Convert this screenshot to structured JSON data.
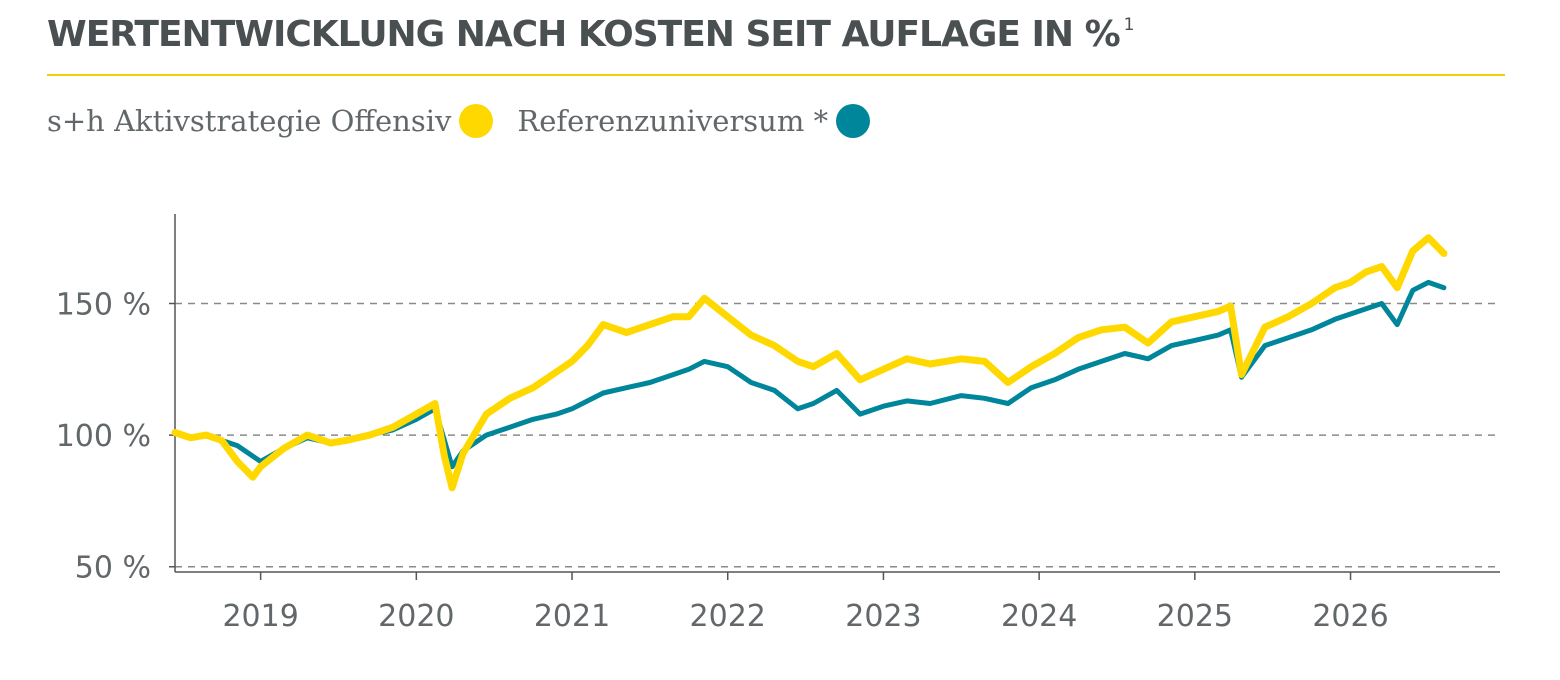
{
  "header": {
    "title": "WERTENTWICKLUNG NACH KOSTEN SEIT AUFLAGE IN %",
    "footnote": "1"
  },
  "legend": [
    {
      "label": "s+h Aktivstrategie Offensiv",
      "color": "#ffd800"
    },
    {
      "label": "Referenzuniversum *",
      "color": "#00869a"
    }
  ],
  "chart_data": {
    "type": "line",
    "title": "WERTENTWICKLUNG NACH KOSTEN SEIT AUFLAGE IN %",
    "xlabel": "",
    "ylabel": "",
    "xlim": [
      2018.45,
      2026.96
    ],
    "ylim": [
      48,
      184
    ],
    "y_ticks": [
      50,
      100,
      150
    ],
    "y_tick_labels": [
      "50 %",
      "100 %",
      "150 %"
    ],
    "x_ticks": [
      2019,
      2020,
      2021,
      2022,
      2023,
      2024,
      2025,
      2026
    ],
    "x_tick_labels": [
      "2019",
      "2020",
      "2021",
      "2022",
      "2023",
      "2024",
      "2025",
      "2026"
    ],
    "grid": "horizontal dashed at y ticks",
    "legend_position": "top-left",
    "series": [
      {
        "name": "s+h Aktivstrategie Offensiv",
        "color": "#ffd800",
        "x": [
          2018.45,
          2018.55,
          2018.65,
          2018.75,
          2018.85,
          2018.95,
          2019.0,
          2019.15,
          2019.3,
          2019.45,
          2019.55,
          2019.7,
          2019.85,
          2020.0,
          2020.12,
          2020.18,
          2020.23,
          2020.3,
          2020.45,
          2020.6,
          2020.75,
          2020.9,
          2021.0,
          2021.1,
          2021.2,
          2021.35,
          2021.5,
          2021.65,
          2021.75,
          2021.85,
          2022.0,
          2022.15,
          2022.3,
          2022.45,
          2022.55,
          2022.7,
          2022.85,
          2023.0,
          2023.15,
          2023.3,
          2023.5,
          2023.65,
          2023.8,
          2023.95,
          2024.1,
          2024.25,
          2024.4,
          2024.55,
          2024.7,
          2024.85,
          2025.0,
          2025.15,
          2025.23,
          2025.3,
          2025.45,
          2025.6,
          2025.75,
          2025.9,
          2026.0,
          2026.1,
          2026.2,
          2026.3,
          2026.4,
          2026.5,
          2026.6
        ],
        "values": [
          101,
          99,
          100,
          98,
          90,
          84,
          88,
          95,
          100,
          97,
          98,
          100,
          103,
          108,
          112,
          92,
          80,
          93,
          108,
          114,
          118,
          124,
          128,
          134,
          142,
          139,
          142,
          145,
          145,
          152,
          145,
          138,
          134,
          128,
          126,
          131,
          121,
          125,
          129,
          127,
          129,
          128,
          120,
          126,
          131,
          137,
          140,
          141,
          135,
          143,
          145,
          147,
          149,
          123,
          141,
          145,
          150,
          156,
          158,
          162,
          164,
          156,
          170,
          175,
          169
        ]
      },
      {
        "name": "Referenzuniversum *",
        "color": "#00869a",
        "x": [
          2018.45,
          2018.55,
          2018.65,
          2018.75,
          2018.85,
          2018.95,
          2019.0,
          2019.15,
          2019.3,
          2019.45,
          2019.55,
          2019.7,
          2019.85,
          2020.0,
          2020.12,
          2020.18,
          2020.23,
          2020.3,
          2020.45,
          2020.6,
          2020.75,
          2020.9,
          2021.0,
          2021.1,
          2021.2,
          2021.35,
          2021.5,
          2021.65,
          2021.75,
          2021.85,
          2022.0,
          2022.15,
          2022.3,
          2022.45,
          2022.55,
          2022.7,
          2022.85,
          2023.0,
          2023.15,
          2023.3,
          2023.5,
          2023.65,
          2023.8,
          2023.95,
          2024.1,
          2024.25,
          2024.4,
          2024.55,
          2024.7,
          2024.85,
          2025.0,
          2025.15,
          2025.23,
          2025.3,
          2025.45,
          2025.6,
          2025.75,
          2025.9,
          2026.0,
          2026.1,
          2026.2,
          2026.3,
          2026.4,
          2026.5,
          2026.6
        ],
        "values": [
          101,
          99,
          100,
          98,
          96,
          92,
          90,
          95,
          99,
          97,
          98,
          100,
          102,
          106,
          110,
          98,
          88,
          94,
          100,
          103,
          106,
          108,
          110,
          113,
          116,
          118,
          120,
          123,
          125,
          128,
          126,
          120,
          117,
          110,
          112,
          117,
          108,
          111,
          113,
          112,
          115,
          114,
          112,
          118,
          121,
          125,
          128,
          131,
          129,
          134,
          136,
          138,
          140,
          122,
          134,
          137,
          140,
          144,
          146,
          148,
          150,
          142,
          155,
          158,
          156
        ]
      }
    ]
  }
}
